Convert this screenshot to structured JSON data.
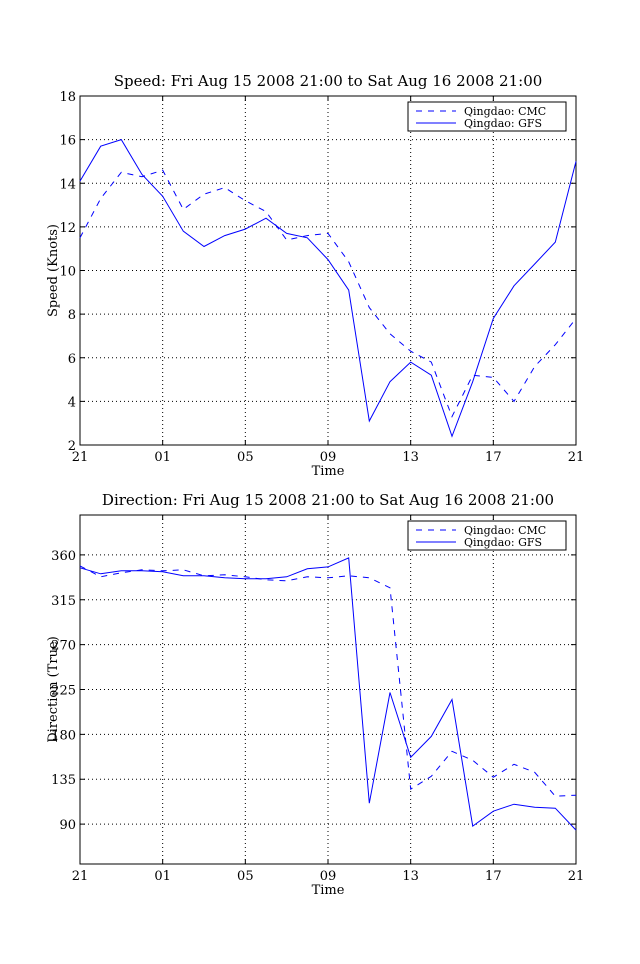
{
  "figure": {
    "colors": {
      "series": "#0000ff",
      "axis": "#000000",
      "grid": "#000000",
      "background": "#ffffff"
    }
  },
  "chart_data": [
    {
      "type": "line",
      "title": "Speed: Fri Aug 15 2008 21:00 to Sat Aug 16 2008 21:00",
      "xlabel": "Time",
      "ylabel": "Speed (Knots)",
      "xlim": [
        0,
        24
      ],
      "ylim": [
        2,
        18
      ],
      "x_ticks": [
        0,
        4,
        8,
        12,
        16,
        20,
        24
      ],
      "x_tick_labels": [
        "21",
        "01",
        "05",
        "09",
        "13",
        "17",
        "21"
      ],
      "y_ticks": [
        2,
        4,
        6,
        8,
        10,
        12,
        14,
        16,
        18
      ],
      "y_tick_labels": [
        "2",
        "4",
        "6",
        "8",
        "10",
        "12",
        "14",
        "16",
        "18"
      ],
      "grid": true,
      "legend_position": "top-right",
      "x": [
        0,
        1,
        2,
        3,
        4,
        5,
        6,
        7,
        8,
        9,
        10,
        11,
        12,
        13,
        14,
        15,
        16,
        17,
        18,
        19,
        20,
        21,
        22,
        23,
        24
      ],
      "series": [
        {
          "name": "Qingdao: CMC",
          "style": "dashed",
          "values": [
            11.5,
            13.3,
            14.5,
            14.3,
            14.6,
            12.8,
            13.5,
            13.8,
            13.2,
            12.7,
            11.4,
            11.6,
            11.7,
            10.4,
            8.3,
            7.1,
            6.3,
            5.8,
            3.3,
            5.2,
            5.1,
            4.0,
            5.6,
            6.6,
            7.8
          ]
        },
        {
          "name": "Qingdao: GFS",
          "style": "solid",
          "values": [
            14.1,
            15.7,
            16.0,
            14.4,
            13.4,
            11.8,
            11.1,
            11.6,
            11.9,
            12.4,
            11.7,
            11.5,
            10.5,
            9.1,
            3.1,
            4.9,
            5.8,
            5.2,
            2.4,
            4.9,
            7.8,
            9.3,
            10.3,
            11.3,
            15.0
          ]
        }
      ]
    },
    {
      "type": "line",
      "title": "Direction: Fri Aug 15 2008 21:00 to Sat Aug 16 2008 21:00",
      "xlabel": "Time",
      "ylabel": "Direction (True)",
      "xlim": [
        0,
        24
      ],
      "ylim": [
        50,
        400
      ],
      "x_ticks": [
        0,
        4,
        8,
        12,
        16,
        20,
        24
      ],
      "x_tick_labels": [
        "21",
        "01",
        "05",
        "09",
        "13",
        "17",
        "21"
      ],
      "y_ticks": [
        90,
        135,
        180,
        225,
        270,
        315,
        360
      ],
      "y_tick_labels": [
        "90",
        "135",
        "180",
        "225",
        "270",
        "315",
        "360"
      ],
      "grid": true,
      "legend_position": "top-right",
      "x": [
        0,
        1,
        2,
        3,
        4,
        5,
        6,
        7,
        8,
        9,
        10,
        11,
        12,
        13,
        14,
        15,
        16,
        17,
        18,
        19,
        20,
        21,
        22,
        23,
        24
      ],
      "series": [
        {
          "name": "Qingdao: CMC",
          "style": "dashed",
          "values": [
            349,
            338,
            342,
            345,
            344,
            345,
            339,
            340,
            338,
            335,
            334,
            338,
            337,
            339,
            337,
            327,
            125,
            138,
            163,
            154,
            137,
            150,
            142,
            118,
            119
          ]
        },
        {
          "name": "Qingdao: GFS",
          "style": "solid",
          "values": [
            347,
            341,
            344,
            344,
            343,
            339,
            339,
            337,
            336,
            336,
            338,
            346,
            348,
            357,
            111,
            222,
            157,
            178,
            215,
            88,
            103,
            110,
            107,
            106,
            84
          ]
        }
      ]
    }
  ]
}
